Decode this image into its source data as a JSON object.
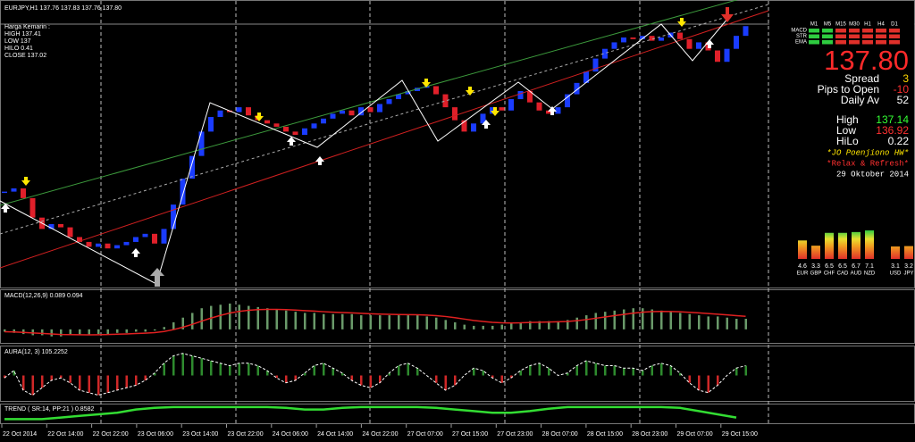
{
  "window": {
    "title": "EURJPY,H1  137.76 137.83 137.76 137.80",
    "yesterday": [
      "Harga Kemarin :",
      "HIGH 137.41",
      "LOW 137",
      "HILO 0.41",
      "CLOSE 137.02"
    ]
  },
  "price": {
    "ylim": [
      136.2,
      137.95
    ],
    "closes": [
      136.78,
      136.8,
      136.74,
      136.62,
      136.55,
      136.58,
      136.56,
      136.5,
      136.47,
      136.44,
      136.46,
      136.43,
      136.45,
      136.47,
      136.5,
      136.52,
      136.46,
      136.55,
      136.7,
      136.86,
      137.0,
      137.15,
      137.24,
      137.28,
      137.27,
      137.3,
      137.25,
      137.22,
      137.2,
      137.18,
      137.15,
      137.13,
      137.17,
      137.2,
      137.23,
      137.26,
      137.28,
      137.25,
      137.3,
      137.27,
      137.32,
      137.35,
      137.38,
      137.4,
      137.42,
      137.43,
      137.38,
      137.3,
      137.22,
      137.15,
      137.2,
      137.26,
      137.3,
      137.28,
      137.35,
      137.4,
      137.33,
      137.28,
      137.26,
      137.3,
      137.38,
      137.45,
      137.52,
      137.6,
      137.66,
      137.7,
      137.73,
      137.72,
      137.74,
      137.71,
      137.73,
      137.76,
      137.72,
      137.66,
      137.7,
      137.65,
      137.58,
      137.66,
      137.74,
      137.8
    ]
  },
  "macd": {
    "label": "MACD(12,26,9) 0.089 0.094",
    "ylim": [
      -0.1,
      0.25
    ],
    "histogram": [
      -0.02,
      -0.03,
      -0.04,
      -0.05,
      -0.05,
      -0.06,
      -0.06,
      -0.05,
      -0.05,
      -0.05,
      -0.04,
      -0.04,
      -0.03,
      -0.03,
      -0.02,
      -0.02,
      -0.01,
      0.02,
      0.06,
      0.1,
      0.14,
      0.18,
      0.2,
      0.21,
      0.22,
      0.21,
      0.2,
      0.19,
      0.18,
      0.17,
      0.16,
      0.15,
      0.14,
      0.14,
      0.13,
      0.13,
      0.13,
      0.13,
      0.12,
      0.12,
      0.12,
      0.12,
      0.12,
      0.12,
      0.12,
      0.11,
      0.1,
      0.08,
      0.06,
      0.04,
      0.03,
      0.03,
      0.03,
      0.04,
      0.05,
      0.06,
      0.07,
      0.07,
      0.07,
      0.07,
      0.08,
      0.1,
      0.12,
      0.14,
      0.15,
      0.16,
      0.17,
      0.18,
      0.18,
      0.17,
      0.16,
      0.15,
      0.14,
      0.13,
      0.12,
      0.11,
      0.11,
      0.1,
      0.09,
      0.09
    ]
  },
  "aura": {
    "label": "AURA(12, 3) 105.2252",
    "ylim": [
      -1,
      1
    ],
    "values": [
      -0.1,
      0.2,
      -0.6,
      -0.8,
      -0.5,
      -0.2,
      -0.1,
      -0.3,
      -0.6,
      -0.7,
      -0.8,
      -0.7,
      -0.6,
      -0.5,
      -0.4,
      -0.2,
      0.1,
      0.5,
      0.8,
      0.9,
      0.8,
      0.7,
      0.6,
      0.5,
      0.4,
      0.5,
      0.5,
      0.4,
      0.2,
      -0.1,
      -0.3,
      -0.2,
      0.1,
      0.4,
      0.5,
      0.3,
      0.1,
      -0.2,
      -0.4,
      -0.5,
      -0.3,
      0.1,
      0.4,
      0.5,
      0.3,
      0.0,
      -0.3,
      -0.6,
      -0.4,
      0.0,
      0.3,
      0.2,
      -0.1,
      -0.3,
      -0.1,
      0.2,
      0.4,
      0.5,
      0.3,
      0.0,
      0.1,
      0.4,
      0.6,
      0.5,
      0.4,
      0.4,
      0.3,
      0.3,
      0.2,
      0.4,
      0.5,
      0.4,
      0.1,
      -0.3,
      -0.6,
      -0.7,
      -0.4,
      0.0,
      0.3,
      0.4
    ]
  },
  "trend": {
    "label": "TREND ( SR:14, PP:21 ) 0.8582",
    "ylim": [
      0,
      1
    ],
    "values": [
      0.2,
      0.2,
      0.2,
      0.3,
      0.4,
      0.5,
      0.6,
      0.8,
      0.9,
      0.95,
      0.95,
      0.95,
      0.95,
      0.95,
      0.95,
      0.9,
      0.8,
      0.8,
      0.9,
      0.95,
      0.95,
      0.95,
      0.95,
      0.9,
      0.8,
      0.7,
      0.6,
      0.6,
      0.7,
      0.85,
      0.95,
      0.95,
      0.95,
      0.95,
      0.95,
      0.95,
      0.9,
      0.7,
      0.5,
      0.3
    ]
  },
  "time_axis": [
    "22 Oct 2014",
    "22 Oct 14:00",
    "22 Oct 22:00",
    "23 Oct 06:00",
    "23 Oct 14:00",
    "23 Oct 22:00",
    "24 Oct 06:00",
    "24 Oct 14:00",
    "24 Oct 22:00",
    "27 Oct 07:00",
    "27 Oct 15:00",
    "27 Oct 23:00",
    "28 Oct 07:00",
    "28 Oct 15:00",
    "28 Oct 23:00",
    "29 Oct 07:00",
    "29 Oct 15:00"
  ],
  "panel": {
    "timeframes": [
      "M1",
      "M5",
      "M15",
      "M30",
      "H1",
      "H4",
      "D1"
    ],
    "indicators": [
      "MACD",
      "STR",
      "EMA"
    ],
    "signals": [
      [
        "up",
        "up",
        "down",
        "down",
        "down",
        "down",
        "down"
      ],
      [
        "up",
        "up",
        "down",
        "down",
        "down",
        "down",
        "down"
      ],
      [
        "up",
        "up",
        "down",
        "down",
        "down",
        "down",
        "down"
      ]
    ],
    "price": "137.80",
    "stats": [
      {
        "label": "Spread",
        "value": 3
      },
      {
        "label": "Pips to Open",
        "value": -10
      },
      {
        "label": "Daily Av",
        "value": 52
      }
    ],
    "range": [
      {
        "label": "High",
        "value": 137.14
      },
      {
        "label": "Low",
        "value": 136.92
      },
      {
        "label": "HiLo",
        "value": 0.22
      }
    ],
    "credit": "*JO Poenjiono HW*",
    "motto": "*Relax & Refresh*",
    "date": "29 Oktober 2014",
    "strength_max": 8,
    "strength": [
      {
        "value": 4.6,
        "currency": "EUR"
      },
      {
        "value": 3.3,
        "currency": "GBP"
      },
      {
        "value": 6.5,
        "currency": "CHF"
      },
      {
        "value": 6.5,
        "currency": "CAD"
      },
      {
        "value": 6.7,
        "currency": "AUD"
      },
      {
        "value": 7.1,
        "currency": "NZD"
      },
      {
        "value": 3.1,
        "currency": "USD"
      },
      {
        "value": 3.2,
        "currency": "JPY"
      }
    ]
  }
}
